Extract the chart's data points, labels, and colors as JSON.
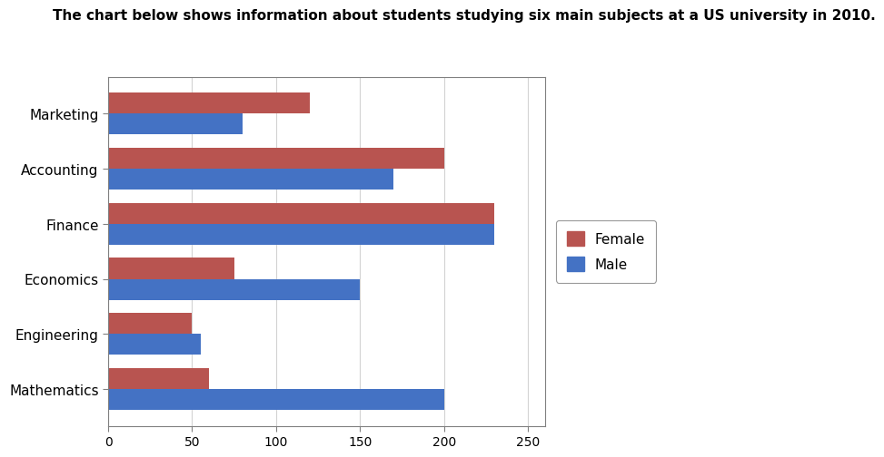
{
  "title": "The chart below shows information about students studying six main subjects at a US university in 2010.",
  "categories": [
    "Mathematics",
    "Engineering",
    "Economics",
    "Finance",
    "Accounting",
    "Marketing"
  ],
  "female_values": [
    60,
    50,
    75,
    230,
    200,
    120
  ],
  "male_values": [
    200,
    55,
    150,
    230,
    170,
    80
  ],
  "female_color": "#B85450",
  "male_color": "#4472C4",
  "xlim": [
    0,
    260
  ],
  "xticks": [
    0,
    50,
    100,
    150,
    200,
    250
  ],
  "bar_height": 0.38,
  "legend_labels": [
    "Female",
    "Male"
  ],
  "background_color": "#FFFFFF",
  "title_fontsize": 11,
  "axis_fontsize": 10
}
